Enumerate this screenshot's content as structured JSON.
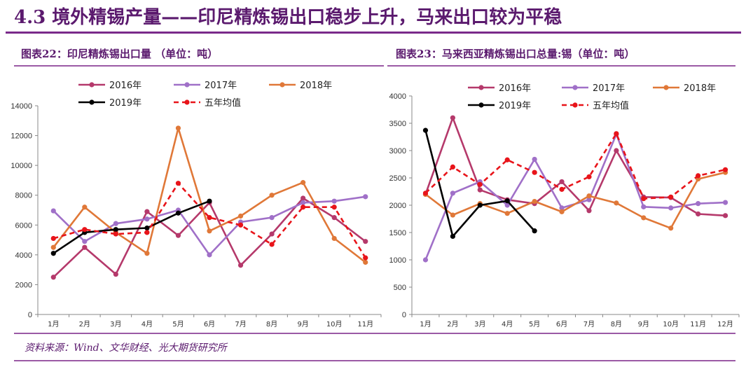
{
  "header": {
    "title": "4.3 境外精锡产量——印尼精炼锡出口稳步上升，马来出口较为平稳"
  },
  "footer": {
    "source": "资料来源：Wind、文华财经、光大期货研究所"
  },
  "colors": {
    "s2016": "#b5396b",
    "s2017": "#a070c8",
    "s2018": "#e07838",
    "s2019": "#000000",
    "avg": "#e8141a"
  },
  "chart_data": [
    {
      "type": "line",
      "title": "图表22：印尼精炼锡出口量 （单位：吨）",
      "categories": [
        "1月",
        "2月",
        "3月",
        "4月",
        "5月",
        "6月",
        "7月",
        "8月",
        "9月",
        "10月",
        "11月"
      ],
      "ylim": [
        0,
        14000
      ],
      "yticks": [
        0,
        2000,
        4000,
        6000,
        8000,
        10000,
        12000,
        14000
      ],
      "series": [
        {
          "name": "2016年",
          "key": "s2016",
          "values": [
            2500,
            4500,
            2700,
            6900,
            5300,
            7500,
            3300,
            5400,
            7800,
            6500,
            4900
          ]
        },
        {
          "name": "2017年",
          "key": "s2017",
          "values": [
            6950,
            4900,
            6100,
            6400,
            7000,
            4000,
            6200,
            6500,
            7500,
            7600,
            7900
          ]
        },
        {
          "name": "2018年",
          "key": "s2018",
          "values": [
            4500,
            7200,
            5500,
            4100,
            12500,
            5600,
            6600,
            8000,
            8850,
            5100,
            3500
          ]
        },
        {
          "name": "2019年",
          "key": "s2019",
          "values": [
            4100,
            5500,
            5700,
            5800,
            6800,
            7600,
            null,
            null,
            null,
            null,
            null
          ]
        },
        {
          "name": "五年均值",
          "key": "avg",
          "dashed": true,
          "values": [
            5100,
            5700,
            5400,
            5500,
            8800,
            6500,
            6000,
            4700,
            7200,
            7200,
            3800
          ]
        }
      ]
    },
    {
      "type": "line",
      "title": "图表23：马来西亚精炼锡出口总量:锡（单位：吨）",
      "categories": [
        "1月",
        "2月",
        "3月",
        "4月",
        "5月",
        "6月",
        "7月",
        "8月",
        "9月",
        "10月",
        "11月",
        "12月"
      ],
      "ylim": [
        0,
        4000
      ],
      "yticks": [
        0,
        500,
        1000,
        1500,
        2000,
        2500,
        3000,
        3500,
        4000
      ],
      "series": [
        {
          "name": "2016年",
          "key": "s2016",
          "values": [
            2200,
            3600,
            2280,
            2100,
            2030,
            2430,
            1900,
            3000,
            2150,
            2140,
            1840,
            1810
          ]
        },
        {
          "name": "2017年",
          "key": "s2017",
          "values": [
            1000,
            2220,
            2430,
            2000,
            2840,
            1950,
            2100,
            3300,
            1970,
            1950,
            2030,
            2050
          ]
        },
        {
          "name": "2018年",
          "key": "s2018",
          "values": [
            2200,
            1820,
            2030,
            1850,
            2070,
            1880,
            2170,
            2040,
            1770,
            1580,
            2480,
            2600
          ]
        },
        {
          "name": "2019年",
          "key": "s2019",
          "values": [
            3370,
            1430,
            2000,
            2080,
            1530,
            null,
            null,
            null,
            null,
            null,
            null,
            null
          ]
        },
        {
          "name": "五年均值",
          "key": "avg",
          "dashed": true,
          "values": [
            2220,
            2700,
            2380,
            2830,
            2600,
            2290,
            2520,
            3310,
            2120,
            2150,
            2540,
            2650
          ]
        }
      ]
    }
  ]
}
